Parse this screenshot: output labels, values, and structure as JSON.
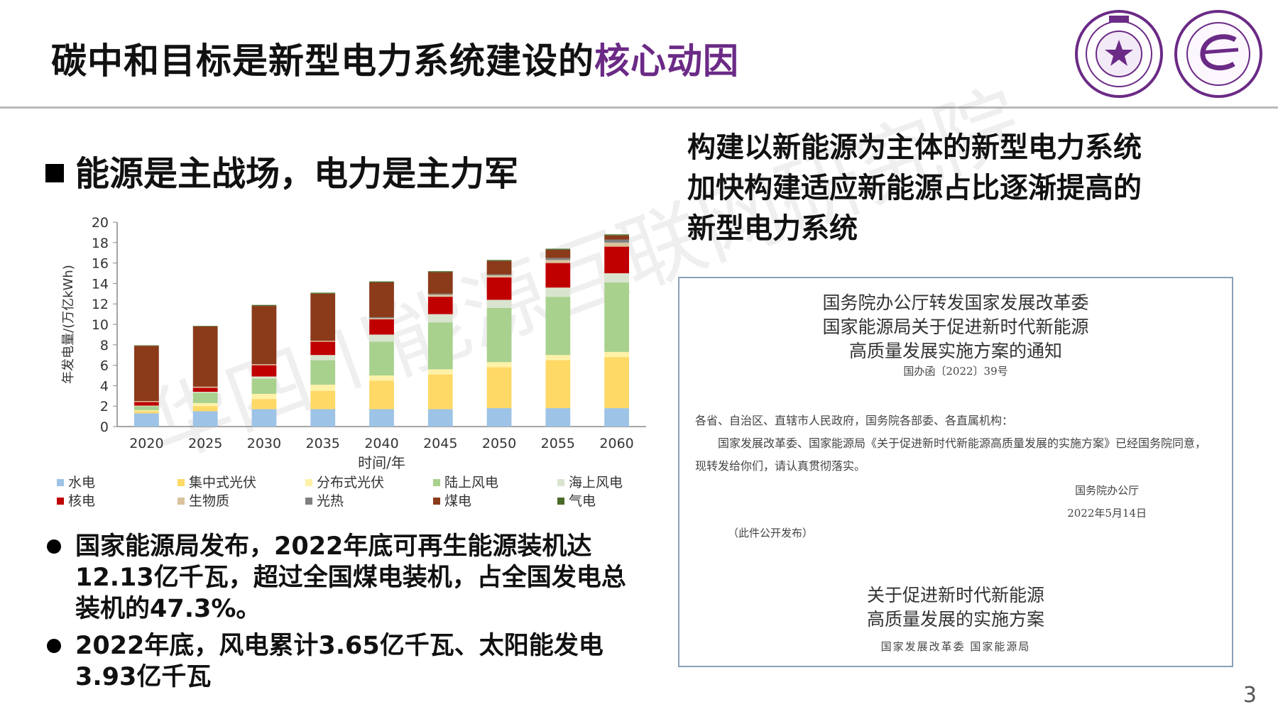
{
  "slide": {
    "title_main": "碳中和目标是新型电力系统建设的",
    "title_highlight": "核心动因",
    "page_number": "3"
  },
  "watermark": "华四川能源互联网研究院",
  "left": {
    "heading": "能源是主战场，电力是主力军",
    "bullets": [
      "国家能源局发布，2022年底可再生能源装机达12.13亿千瓦，超过全国煤电装机，占全国发电总装机的47.3%。",
      "2022年底，风电累计3.65亿千瓦、太阳能发电3.93亿千瓦"
    ]
  },
  "right": {
    "heading_lines": [
      "构建以新能源为主体的新型电力系统",
      "加快构建适应新能源占比逐渐提高的",
      "新型电力系统"
    ]
  },
  "notice": {
    "title_lines": [
      "国务院办公厅转发国家发展改革委",
      "国家能源局关于促进新时代新能源",
      "高质量发展实施方案的通知"
    ],
    "doc_number": "国办函〔2022〕39号",
    "recipients": "各省、自治区、直辖市人民政府，国务院各部委、各直属机构：",
    "body": "国家发展改革委、国家能源局《关于促进新时代新能源高质量发展的实施方案》已经国务院同意，现转发给你们，请认真贯彻落实。",
    "signer": "国务院办公厅",
    "date": "2022年5月14日",
    "public_note": "（此件公开发布）",
    "subtitle_lines": [
      "关于促进新时代新能源",
      "高质量发展的实施方案"
    ],
    "issuer": "国家发展改革委 国家能源局"
  },
  "chart_data": {
    "type": "bar",
    "stacked": true,
    "xlabel": "时间/年",
    "ylabel": "年发电量/(万亿kWh)",
    "ylim": [
      0,
      20
    ],
    "yticks": [
      0,
      2,
      4,
      6,
      8,
      10,
      12,
      14,
      16,
      18,
      20
    ],
    "grid": false,
    "legend_position": "bottom",
    "categories": [
      "2020",
      "2025",
      "2030",
      "2035",
      "2040",
      "2045",
      "2050",
      "2055",
      "2060"
    ],
    "series": [
      {
        "name": "水电",
        "color": "#9dc3e6",
        "values": [
          1.3,
          1.5,
          1.7,
          1.7,
          1.7,
          1.7,
          1.8,
          1.8,
          1.8
        ]
      },
      {
        "name": "集中式光伏",
        "color": "#ffd966",
        "values": [
          0.2,
          0.5,
          1.0,
          1.8,
          2.8,
          3.4,
          4.0,
          4.7,
          5.0
        ]
      },
      {
        "name": "分布式光伏",
        "color": "#fff2a8",
        "values": [
          0.1,
          0.3,
          0.5,
          0.6,
          0.5,
          0.5,
          0.5,
          0.5,
          0.5
        ]
      },
      {
        "name": "陆上风电",
        "color": "#a9d18e",
        "values": [
          0.4,
          1.0,
          1.5,
          2.4,
          3.3,
          4.6,
          5.3,
          5.7,
          6.8
        ]
      },
      {
        "name": "海上风电",
        "color": "#d9e4cf",
        "values": [
          0.05,
          0.1,
          0.2,
          0.5,
          0.7,
          0.8,
          0.8,
          0.9,
          0.9
        ]
      },
      {
        "name": "核电",
        "color": "#c00000",
        "values": [
          0.35,
          0.4,
          1.1,
          1.3,
          1.5,
          1.7,
          2.2,
          2.4,
          2.6
        ]
      },
      {
        "name": "生物质",
        "color": "#d9c29c",
        "values": [
          0.1,
          0.1,
          0.1,
          0.1,
          0.1,
          0.2,
          0.2,
          0.3,
          0.4
        ]
      },
      {
        "name": "光热",
        "color": "#7f7f7f",
        "values": [
          0.0,
          0.0,
          0.0,
          0.0,
          0.1,
          0.1,
          0.1,
          0.2,
          0.3
        ]
      },
      {
        "name": "煤电",
        "color": "#8b3a1a",
        "values": [
          5.4,
          5.9,
          5.7,
          4.6,
          3.4,
          2.1,
          1.3,
          0.8,
          0.4
        ]
      },
      {
        "name": "气电",
        "color": "#4a6a2a",
        "values": [
          0.05,
          0.05,
          0.1,
          0.1,
          0.1,
          0.1,
          0.1,
          0.1,
          0.1
        ]
      }
    ]
  }
}
